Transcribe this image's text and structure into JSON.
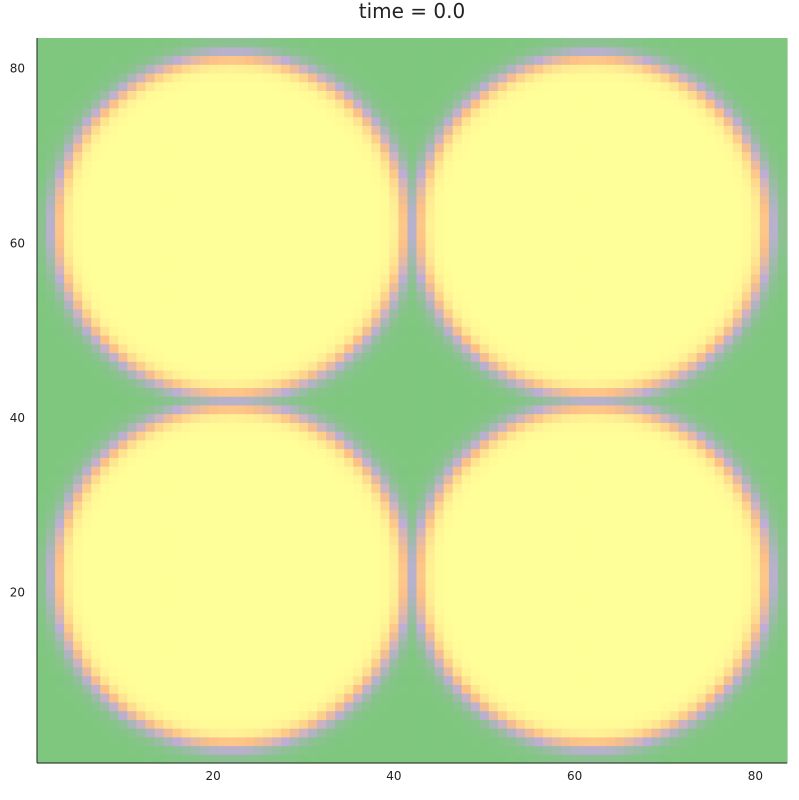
{
  "chart_data": {
    "type": "heatmap",
    "title": "time = 0.0",
    "xlabel": "",
    "ylabel": "",
    "xlim": [
      0.5,
      83.5
    ],
    "ylim": [
      0.5,
      83.5
    ],
    "grid_size": [
      83,
      83
    ],
    "xticks": [
      20,
      40,
      60,
      80
    ],
    "yticks": [
      20,
      40,
      60,
      80
    ],
    "grid": false,
    "legend": "none",
    "field": {
      "description_of_values": "binary phase field: 1 inside circles, 0 outside",
      "circles": [
        {
          "center": [
            22,
            22
          ],
          "radius": 19.5
        },
        {
          "center": [
            62,
            22
          ],
          "radius": 19.5
        },
        {
          "center": [
            22,
            62
          ],
          "radius": 19.5
        },
        {
          "center": [
            62,
            62
          ],
          "radius": 19.5
        }
      ],
      "interface_width": 1.2,
      "inside_value": 1.0,
      "outside_value": 0.0
    },
    "colors": {
      "outside": "#7fc77f",
      "interface_low": "#beaed4",
      "interface_high": "#fdc086",
      "inside": "#ffff99"
    }
  }
}
